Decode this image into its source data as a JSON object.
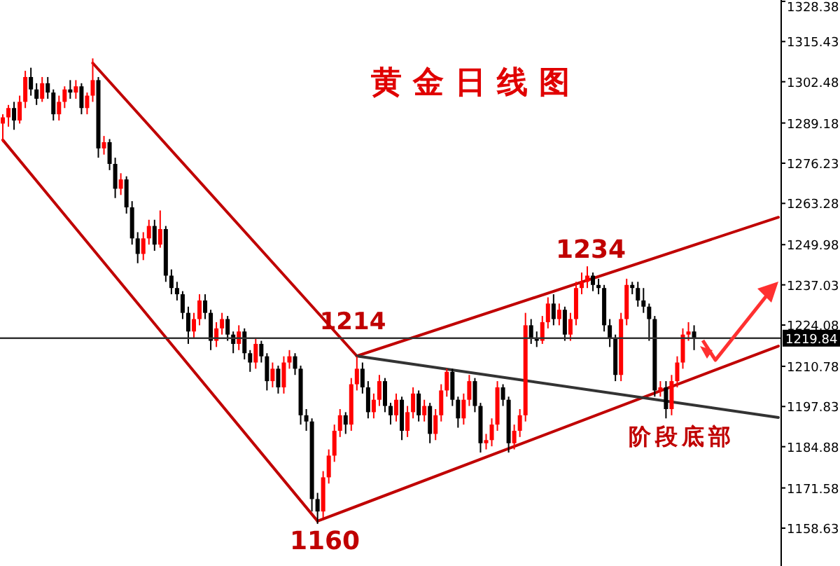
{
  "chart_data": {
    "type": "candlestick",
    "title": "黄金日线图",
    "annotations": [
      "1214",
      "1234",
      "1160",
      "阶段底部"
    ],
    "categories": [
      null,
      null,
      null,
      null,
      null,
      null,
      null,
      null,
      null,
      null,
      null,
      null,
      null,
      null,
      null,
      null,
      null,
      null,
      null,
      null,
      null,
      null,
      null,
      null,
      null,
      null,
      null,
      null,
      null,
      null,
      null,
      null,
      null,
      null,
      null,
      null,
      null,
      null,
      null,
      null,
      null,
      null,
      null,
      null,
      null,
      null,
      null,
      null,
      null,
      null,
      null,
      null,
      null,
      null,
      null,
      null,
      null,
      null,
      null,
      null,
      null,
      null,
      null,
      null,
      null,
      null,
      null,
      null,
      null,
      null,
      null,
      null,
      null,
      null,
      null,
      null,
      null,
      null,
      null,
      null,
      null,
      null,
      null,
      null,
      null,
      null,
      null,
      null,
      null,
      null,
      null,
      null,
      null,
      null,
      null,
      null,
      null,
      null,
      null,
      null,
      null,
      null,
      null,
      null,
      null,
      null,
      null,
      null,
      null,
      null,
      null,
      null,
      null,
      null,
      null,
      null,
      null,
      null,
      null,
      null,
      null,
      null,
      null,
      null,
      null,
      null,
      null,
      null,
      null,
      null,
      null,
      null,
      null,
      null,
      null,
      null,
      null,
      null,
      null
    ],
    "ohlc": [
      [
        1289,
        1292,
        1283,
        1291
      ],
      [
        1291,
        1295,
        1288,
        1294
      ],
      [
        1294,
        1296,
        1287,
        1290
      ],
      [
        1290,
        1298,
        1289,
        1296
      ],
      [
        1296,
        1306,
        1294,
        1304
      ],
      [
        1304,
        1307,
        1298,
        1300
      ],
      [
        1300,
        1302,
        1295,
        1297
      ],
      [
        1297,
        1304,
        1296,
        1302
      ],
      [
        1302,
        1304,
        1297,
        1299
      ],
      [
        1299,
        1300,
        1290,
        1292
      ],
      [
        1292,
        1298,
        1290,
        1296
      ],
      [
        1296,
        1301,
        1294,
        1300
      ],
      [
        1300,
        1303,
        1297,
        1299
      ],
      [
        1299,
        1303,
        1297,
        1301
      ],
      [
        1301,
        1302,
        1292,
        1294
      ],
      [
        1294,
        1299,
        1292,
        1298
      ],
      [
        1298,
        1310,
        1296,
        1303
      ],
      [
        1303,
        1304,
        1278,
        1281
      ],
      [
        1281,
        1285,
        1279,
        1283
      ],
      [
        1283,
        1284,
        1274,
        1276
      ],
      [
        1276,
        1278,
        1265,
        1268
      ],
      [
        1268,
        1273,
        1266,
        1271
      ],
      [
        1271,
        1272,
        1260,
        1262
      ],
      [
        1262,
        1264,
        1250,
        1252
      ],
      [
        1252,
        1254,
        1244,
        1247
      ],
      [
        1247,
        1254,
        1245,
        1252
      ],
      [
        1252,
        1258,
        1250,
        1256
      ],
      [
        1256,
        1258,
        1248,
        1250
      ],
      [
        1250,
        1261,
        1249,
        1255
      ],
      [
        1255,
        1256,
        1238,
        1240
      ],
      [
        1240,
        1242,
        1234,
        1236
      ],
      [
        1236,
        1238,
        1232,
        1234
      ],
      [
        1234,
        1235,
        1226,
        1228
      ],
      [
        1228,
        1230,
        1218,
        1222
      ],
      [
        1222,
        1228,
        1220,
        1226
      ],
      [
        1226,
        1234,
        1224,
        1232
      ],
      [
        1232,
        1234,
        1226,
        1228
      ],
      [
        1228,
        1229,
        1216,
        1219
      ],
      [
        1219,
        1225,
        1217,
        1223
      ],
      [
        1223,
        1228,
        1221,
        1226
      ],
      [
        1226,
        1227,
        1219,
        1221
      ],
      [
        1221,
        1222,
        1215,
        1218
      ],
      [
        1218,
        1224,
        1216,
        1222
      ],
      [
        1222,
        1223,
        1213,
        1215
      ],
      [
        1215,
        1216,
        1209,
        1212
      ],
      [
        1212,
        1220,
        1210,
        1218
      ],
      [
        1218,
        1219,
        1212,
        1214
      ],
      [
        1214,
        1215,
        1203,
        1206
      ],
      [
        1206,
        1212,
        1204,
        1210
      ],
      [
        1210,
        1211,
        1202,
        1204
      ],
      [
        1204,
        1214,
        1202,
        1212
      ],
      [
        1212,
        1216,
        1210,
        1214
      ],
      [
        1214,
        1215,
        1208,
        1210
      ],
      [
        1210,
        1211,
        1192,
        1195
      ],
      [
        1195,
        1197,
        1190,
        1193
      ],
      [
        1193,
        1194,
        1164,
        1168
      ],
      [
        1168,
        1170,
        1160,
        1164
      ],
      [
        1164,
        1177,
        1162,
        1175
      ],
      [
        1175,
        1184,
        1173,
        1182
      ],
      [
        1182,
        1192,
        1180,
        1190
      ],
      [
        1190,
        1197,
        1188,
        1195
      ],
      [
        1195,
        1196,
        1189,
        1192
      ],
      [
        1192,
        1207,
        1190,
        1205
      ],
      [
        1205,
        1214,
        1203,
        1210
      ],
      [
        1210,
        1212,
        1202,
        1204
      ],
      [
        1204,
        1206,
        1194,
        1196
      ],
      [
        1196,
        1202,
        1194,
        1200
      ],
      [
        1200,
        1208,
        1198,
        1206
      ],
      [
        1206,
        1207,
        1196,
        1198
      ],
      [
        1198,
        1199,
        1192,
        1195
      ],
      [
        1195,
        1202,
        1193,
        1200
      ],
      [
        1200,
        1201,
        1187,
        1190
      ],
      [
        1190,
        1198,
        1188,
        1196
      ],
      [
        1196,
        1204,
        1194,
        1202
      ],
      [
        1202,
        1203,
        1193,
        1195
      ],
      [
        1195,
        1200,
        1193,
        1198
      ],
      [
        1198,
        1199,
        1186,
        1189
      ],
      [
        1189,
        1197,
        1187,
        1195
      ],
      [
        1195,
        1205,
        1193,
        1203
      ],
      [
        1203,
        1210,
        1201,
        1209
      ],
      [
        1209,
        1210,
        1198,
        1200
      ],
      [
        1200,
        1201,
        1191,
        1194
      ],
      [
        1194,
        1202,
        1192,
        1200
      ],
      [
        1200,
        1208,
        1198,
        1206
      ],
      [
        1206,
        1207,
        1196,
        1198
      ],
      [
        1198,
        1199,
        1183,
        1186
      ],
      [
        1186,
        1189,
        1184,
        1187
      ],
      [
        1187,
        1194,
        1185,
        1192
      ],
      [
        1192,
        1206,
        1190,
        1204
      ],
      [
        1204,
        1205,
        1198,
        1200
      ],
      [
        1200,
        1201,
        1183,
        1186
      ],
      [
        1186,
        1192,
        1184,
        1190
      ],
      [
        1190,
        1197,
        1188,
        1195
      ],
      [
        1195,
        1228,
        1193,
        1224
      ],
      [
        1224,
        1226,
        1218,
        1220
      ],
      [
        1220,
        1222,
        1217,
        1219
      ],
      [
        1219,
        1227,
        1218,
        1225
      ],
      [
        1225,
        1233,
        1223,
        1231
      ],
      [
        1231,
        1234,
        1224,
        1226
      ],
      [
        1226,
        1231,
        1224,
        1229
      ],
      [
        1229,
        1230,
        1219,
        1221
      ],
      [
        1221,
        1228,
        1219,
        1226
      ],
      [
        1226,
        1238,
        1224,
        1236
      ],
      [
        1236,
        1241,
        1234,
        1238
      ],
      [
        1238,
        1243,
        1236,
        1240
      ],
      [
        1240,
        1241,
        1235,
        1237
      ],
      [
        1237,
        1239,
        1234,
        1236
      ],
      [
        1236,
        1237,
        1222,
        1224
      ],
      [
        1224,
        1226,
        1217,
        1220
      ],
      [
        1220,
        1221,
        1206,
        1208
      ],
      [
        1208,
        1228,
        1206,
        1226
      ],
      [
        1226,
        1239,
        1224,
        1237
      ],
      [
        1237,
        1238,
        1234,
        1236
      ],
      [
        1236,
        1238,
        1230,
        1232
      ],
      [
        1232,
        1236,
        1228,
        1230
      ],
      [
        1230,
        1231,
        1219,
        1226
      ],
      [
        1226,
        1227,
        1201,
        1203
      ],
      [
        1203,
        1206,
        1201,
        1204
      ],
      [
        1204,
        1206,
        1194,
        1197
      ],
      [
        1197,
        1208,
        1195,
        1206
      ],
      [
        1206,
        1214,
        1204,
        1212
      ],
      [
        1212,
        1223,
        1210,
        1221
      ],
      [
        1221,
        1225,
        1219,
        1222
      ],
      [
        1222,
        1224,
        1216,
        1219.84
      ],
      null,
      null,
      null,
      null,
      null,
      null,
      null,
      null,
      null,
      null,
      null,
      null,
      null,
      null,
      null
    ],
    "colors": [
      "#ff0000",
      "#ff0000",
      "#000000",
      "#ff0000",
      "#ff0000",
      "#000000",
      "#000000",
      "#ff0000",
      "#000000",
      "#000000",
      "#ff0000",
      "#ff0000",
      "#000000",
      "#ff0000",
      "#000000",
      "#ff0000",
      "#ff0000",
      "#000000",
      "#ff0000",
      "#000000",
      "#000000",
      "#ff0000",
      "#000000",
      "#000000",
      "#000000",
      "#ff0000",
      "#ff0000",
      "#000000",
      "#ff0000",
      "#000000",
      "#000000",
      "#000000",
      "#000000",
      "#000000",
      "#ff0000",
      "#ff0000",
      "#000000",
      "#000000",
      "#ff0000",
      "#ff0000",
      "#000000",
      "#000000",
      "#ff0000",
      "#000000",
      "#000000",
      "#ff0000",
      "#000000",
      "#000000",
      "#ff0000",
      "#000000",
      "#ff0000",
      "#ff0000",
      "#000000",
      "#000000",
      "#000000",
      "#000000",
      "#000000",
      "#ff0000",
      "#ff0000",
      "#ff0000",
      "#ff0000",
      "#000000",
      "#ff0000",
      "#ff0000",
      "#000000",
      "#000000",
      "#ff0000",
      "#ff0000",
      "#000000",
      "#000000",
      "#ff0000",
      "#000000",
      "#ff0000",
      "#ff0000",
      "#000000",
      "#ff0000",
      "#000000",
      "#ff0000",
      "#ff0000",
      "#ff0000",
      "#000000",
      "#000000",
      "#ff0000",
      "#ff0000",
      "#000000",
      "#000000",
      "#ff0000",
      "#ff0000",
      "#ff0000",
      "#000000",
      "#000000",
      "#ff0000",
      "#ff0000",
      "#ff0000",
      "#000000",
      "#000000",
      "#ff0000",
      "#ff0000",
      "#000000",
      "#ff0000",
      "#000000",
      "#ff0000",
      "#ff0000",
      "#ff0000",
      "#ff0000",
      "#000000",
      "#000000",
      "#000000",
      "#000000",
      "#000000",
      "#ff0000",
      "#ff0000",
      "#000000",
      "#000000",
      "#000000",
      "#000000",
      "#000000",
      "#ff0000",
      "#000000",
      "#ff0000",
      "#ff0000",
      "#ff0000",
      "#ff0000",
      "#000000",
      null,
      null,
      null,
      null,
      null,
      null,
      null,
      null,
      null,
      null,
      null,
      null,
      null,
      null,
      null
    ],
    "series": [
      {
        "type": "line",
        "color": "#c00000",
        "values": [
          null,
          null,
          null,
          null,
          null,
          null,
          null,
          null,
          null,
          null,
          null,
          null,
          null,
          null,
          null,
          null,
          1308.5,
          null,
          null,
          null,
          null,
          null,
          null,
          null,
          null,
          null,
          null,
          null,
          null,
          null,
          null,
          null,
          null,
          null,
          null,
          null,
          null,
          null,
          null,
          null,
          null,
          null,
          null,
          null,
          null,
          null,
          null,
          null,
          null,
          null,
          null,
          null,
          null,
          null,
          null,
          null,
          null,
          null,
          null,
          null,
          null,
          null,
          null,
          1214.1,
          null,
          null,
          null,
          null,
          null,
          null,
          null,
          null,
          null,
          null,
          null,
          null,
          null,
          null,
          null,
          null,
          null,
          null,
          null,
          null,
          null,
          null,
          null,
          null,
          null,
          null,
          null,
          null,
          null,
          null,
          null,
          null,
          null,
          null,
          null,
          null,
          null,
          null,
          null,
          null,
          null,
          null,
          null,
          null,
          null,
          null,
          null,
          null,
          null,
          null,
          null,
          null,
          null,
          null,
          null,
          null,
          null,
          null,
          null,
          null,
          null,
          null,
          null,
          null,
          null,
          null,
          null,
          null,
          null,
          null,
          null,
          null,
          null,
          null,
          null
        ]
      },
      {
        "type": "line",
        "color": "#c00000",
        "values": [
          1283.7,
          null,
          null,
          null,
          null,
          null,
          null,
          null,
          null,
          null,
          null,
          null,
          null,
          null,
          null,
          null,
          null,
          null,
          null,
          null,
          null,
          null,
          null,
          null,
          null,
          null,
          null,
          null,
          null,
          null,
          null,
          null,
          null,
          null,
          null,
          null,
          null,
          null,
          null,
          null,
          null,
          null,
          null,
          null,
          null,
          null,
          null,
          null,
          null,
          null,
          null,
          null,
          null,
          null,
          null,
          null,
          1160.9,
          null,
          null,
          null,
          null,
          null,
          null,
          null,
          null,
          null,
          null,
          null,
          null,
          null,
          null,
          null,
          null,
          null,
          null,
          null,
          null,
          null,
          null,
          null,
          null,
          null,
          null,
          null,
          null,
          null,
          null,
          null,
          null,
          null,
          null,
          null,
          null,
          null,
          null,
          null,
          null,
          null,
          null,
          null,
          null,
          null,
          null,
          null,
          null,
          null,
          null,
          null,
          null,
          null,
          null,
          null,
          null,
          null,
          null,
          null,
          null,
          null,
          null,
          null,
          null,
          null,
          null,
          null,
          null,
          null,
          null,
          null,
          null,
          null,
          null,
          null,
          null,
          null,
          null,
          null,
          null,
          null,
          null
        ]
      },
      {
        "type": "line",
        "color": "#c00000",
        "values": [
          null,
          null,
          null,
          null,
          null,
          null,
          null,
          null,
          null,
          null,
          null,
          null,
          null,
          null,
          null,
          null,
          null,
          null,
          null,
          null,
          null,
          null,
          null,
          null,
          null,
          null,
          null,
          null,
          null,
          null,
          null,
          null,
          null,
          null,
          null,
          null,
          null,
          null,
          null,
          null,
          null,
          null,
          null,
          null,
          null,
          null,
          null,
          null,
          null,
          null,
          null,
          null,
          null,
          null,
          null,
          null,
          null,
          null,
          null,
          null,
          null,
          null,
          null,
          1214.1,
          null,
          null,
          null,
          null,
          null,
          null,
          null,
          null,
          null,
          null,
          null,
          null,
          null,
          null,
          null,
          null,
          null,
          null,
          null,
          null,
          null,
          null,
          null,
          null,
          null,
          null,
          null,
          null,
          null,
          null,
          null,
          null,
          null,
          null,
          null,
          null,
          null,
          null,
          null,
          null,
          null,
          null,
          null,
          null,
          null,
          null,
          null,
          null,
          null,
          null,
          null,
          null,
          null,
          null,
          null,
          null,
          null,
          null,
          null,
          null,
          null,
          null,
          null,
          null,
          null,
          null,
          null,
          null,
          null,
          null,
          null,
          null,
          null,
          null,
          1258.8
        ]
      },
      {
        "type": "line",
        "color": "#c00000",
        "values": [
          null,
          null,
          null,
          null,
          null,
          null,
          null,
          null,
          null,
          null,
          null,
          null,
          null,
          null,
          null,
          null,
          null,
          null,
          null,
          null,
          null,
          null,
          null,
          null,
          null,
          null,
          null,
          null,
          null,
          null,
          null,
          null,
          null,
          null,
          null,
          null,
          null,
          null,
          null,
          null,
          null,
          null,
          null,
          null,
          null,
          null,
          null,
          null,
          null,
          null,
          null,
          null,
          null,
          null,
          null,
          null,
          1160.9,
          null,
          null,
          null,
          null,
          null,
          null,
          null,
          null,
          null,
          null,
          null,
          null,
          null,
          null,
          null,
          null,
          null,
          null,
          null,
          null,
          null,
          null,
          null,
          null,
          null,
          null,
          null,
          null,
          null,
          null,
          null,
          null,
          null,
          null,
          null,
          null,
          null,
          null,
          null,
          null,
          null,
          null,
          null,
          null,
          null,
          null,
          null,
          null,
          null,
          null,
          null,
          null,
          null,
          null,
          null,
          null,
          null,
          null,
          null,
          null,
          null,
          null,
          null,
          null,
          null,
          null,
          null,
          null,
          null,
          null,
          null,
          null,
          null,
          null,
          null,
          null,
          null,
          null,
          null,
          null,
          null,
          1217.3
        ]
      },
      {
        "type": "line",
        "color": "#333333",
        "values": [
          null,
          null,
          null,
          null,
          null,
          null,
          null,
          null,
          null,
          null,
          null,
          null,
          null,
          null,
          null,
          null,
          null,
          null,
          null,
          null,
          null,
          null,
          null,
          null,
          null,
          null,
          null,
          null,
          null,
          null,
          null,
          null,
          null,
          null,
          null,
          null,
          null,
          null,
          null,
          null,
          null,
          null,
          null,
          null,
          null,
          null,
          null,
          null,
          null,
          null,
          null,
          null,
          null,
          null,
          null,
          null,
          null,
          null,
          null,
          null,
          null,
          null,
          null,
          1214.1,
          null,
          null,
          null,
          null,
          null,
          null,
          null,
          null,
          null,
          null,
          null,
          null,
          null,
          null,
          null,
          null,
          null,
          null,
          null,
          null,
          null,
          null,
          null,
          null,
          null,
          null,
          null,
          null,
          null,
          null,
          null,
          null,
          null,
          null,
          null,
          null,
          null,
          null,
          null,
          null,
          null,
          null,
          null,
          null,
          null,
          null,
          null,
          null,
          null,
          null,
          null,
          null,
          null,
          null,
          null,
          null,
          null,
          null,
          null,
          null,
          null,
          null,
          null,
          null,
          null,
          null,
          null,
          null,
          null,
          null,
          null,
          null,
          null,
          null,
          1194.3
        ]
      }
    ],
    "ylim": [
      1146.43,
      1328.82
    ],
    "yticks": [
      1158.63,
      1171.58,
      1184.88,
      1197.83,
      1210.78,
      1224.08,
      1237.03,
      1249.98,
      1263.28,
      1276.23,
      1289.18,
      1302.48,
      1315.43,
      1328.38
    ],
    "tick_labels": "y",
    "ref_lines": [
      {
        "axis": "y",
        "value": 1219.84,
        "label": "1219.84",
        "color": "#333333"
      }
    ]
  }
}
